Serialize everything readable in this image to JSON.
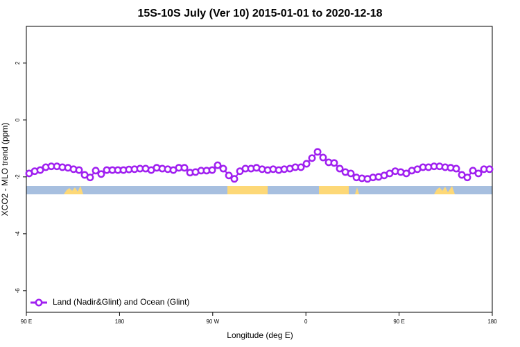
{
  "chart_data": {
    "type": "line",
    "title": "15S-10S July (Ver 10)   2015-01-01 to 2020-12-18",
    "x_label": "Longitude (deg E)",
    "y_label": "XCO2 - MLO trend (ppm)",
    "xlim": [
      90,
      540
    ],
    "ylim": [
      -6.76,
      3.29
    ],
    "xticks": [
      {
        "value": 90,
        "label": "90 E"
      },
      180,
      {
        "value": 270,
        "label": "90 W"
      },
      {
        "value": 360,
        "label": "0"
      },
      {
        "value": 450,
        "label": "90 E"
      },
      {
        "value": 540,
        "label": "180"
      }
    ],
    "yticks": [
      2,
      0,
      -2,
      -4,
      -6
    ],
    "legend": "bottom-left",
    "x": [
      92.7,
      98.1,
      103.4,
      108.8,
      114.1,
      119.5,
      124.8,
      130.2,
      135.6,
      140.9,
      146.3,
      151.6,
      157.0,
      162.3,
      167.7,
      173.1,
      178.4,
      183.8,
      189.1,
      194.5,
      199.8,
      205.2,
      210.6,
      215.9,
      221.3,
      226.6,
      232.0,
      237.3,
      242.7,
      248.1,
      253.4,
      258.8,
      264.1,
      269.5,
      274.8,
      280.2,
      285.6,
      290.9,
      296.3,
      301.6,
      307.0,
      312.3,
      317.7,
      323.1,
      328.4,
      333.8,
      339.1,
      344.5,
      349.8,
      355.2,
      360.6,
      365.9,
      371.3,
      376.6,
      382.0,
      387.3,
      392.7,
      398.1,
      403.4,
      408.8,
      414.1,
      419.5,
      424.8,
      430.2,
      435.6,
      440.9,
      446.3,
      451.6,
      457.0,
      462.3,
      467.7,
      473.1,
      478.4,
      483.8,
      489.1,
      494.5,
      499.8,
      505.2,
      510.6,
      515.9,
      521.3,
      526.6,
      532.0,
      537.3
    ],
    "series": [
      {
        "name": "Land (Nadir&Glint) and Ocean (Glint)",
        "color": "#a020f0",
        "values": [
          -1.88,
          -1.8,
          -1.76,
          -1.66,
          -1.63,
          -1.63,
          -1.66,
          -1.68,
          -1.73,
          -1.76,
          -1.93,
          -2.02,
          -1.78,
          -1.9,
          -1.76,
          -1.76,
          -1.76,
          -1.76,
          -1.74,
          -1.73,
          -1.71,
          -1.71,
          -1.76,
          -1.68,
          -1.71,
          -1.73,
          -1.76,
          -1.68,
          -1.68,
          -1.85,
          -1.83,
          -1.78,
          -1.78,
          -1.76,
          -1.59,
          -1.71,
          -1.95,
          -2.07,
          -1.8,
          -1.71,
          -1.71,
          -1.68,
          -1.73,
          -1.76,
          -1.73,
          -1.76,
          -1.73,
          -1.71,
          -1.66,
          -1.66,
          -1.54,
          -1.34,
          -1.12,
          -1.32,
          -1.49,
          -1.51,
          -1.71,
          -1.83,
          -1.88,
          -2.02,
          -2.05,
          -2.07,
          -2.02,
          -2.0,
          -1.95,
          -1.88,
          -1.8,
          -1.83,
          -1.88,
          -1.78,
          -1.73,
          -1.66,
          -1.66,
          -1.63,
          -1.63,
          -1.66,
          -1.68,
          -1.71,
          -1.93,
          -2.02,
          -1.78,
          -1.88,
          -1.73,
          -1.73
        ]
      }
    ]
  }
}
